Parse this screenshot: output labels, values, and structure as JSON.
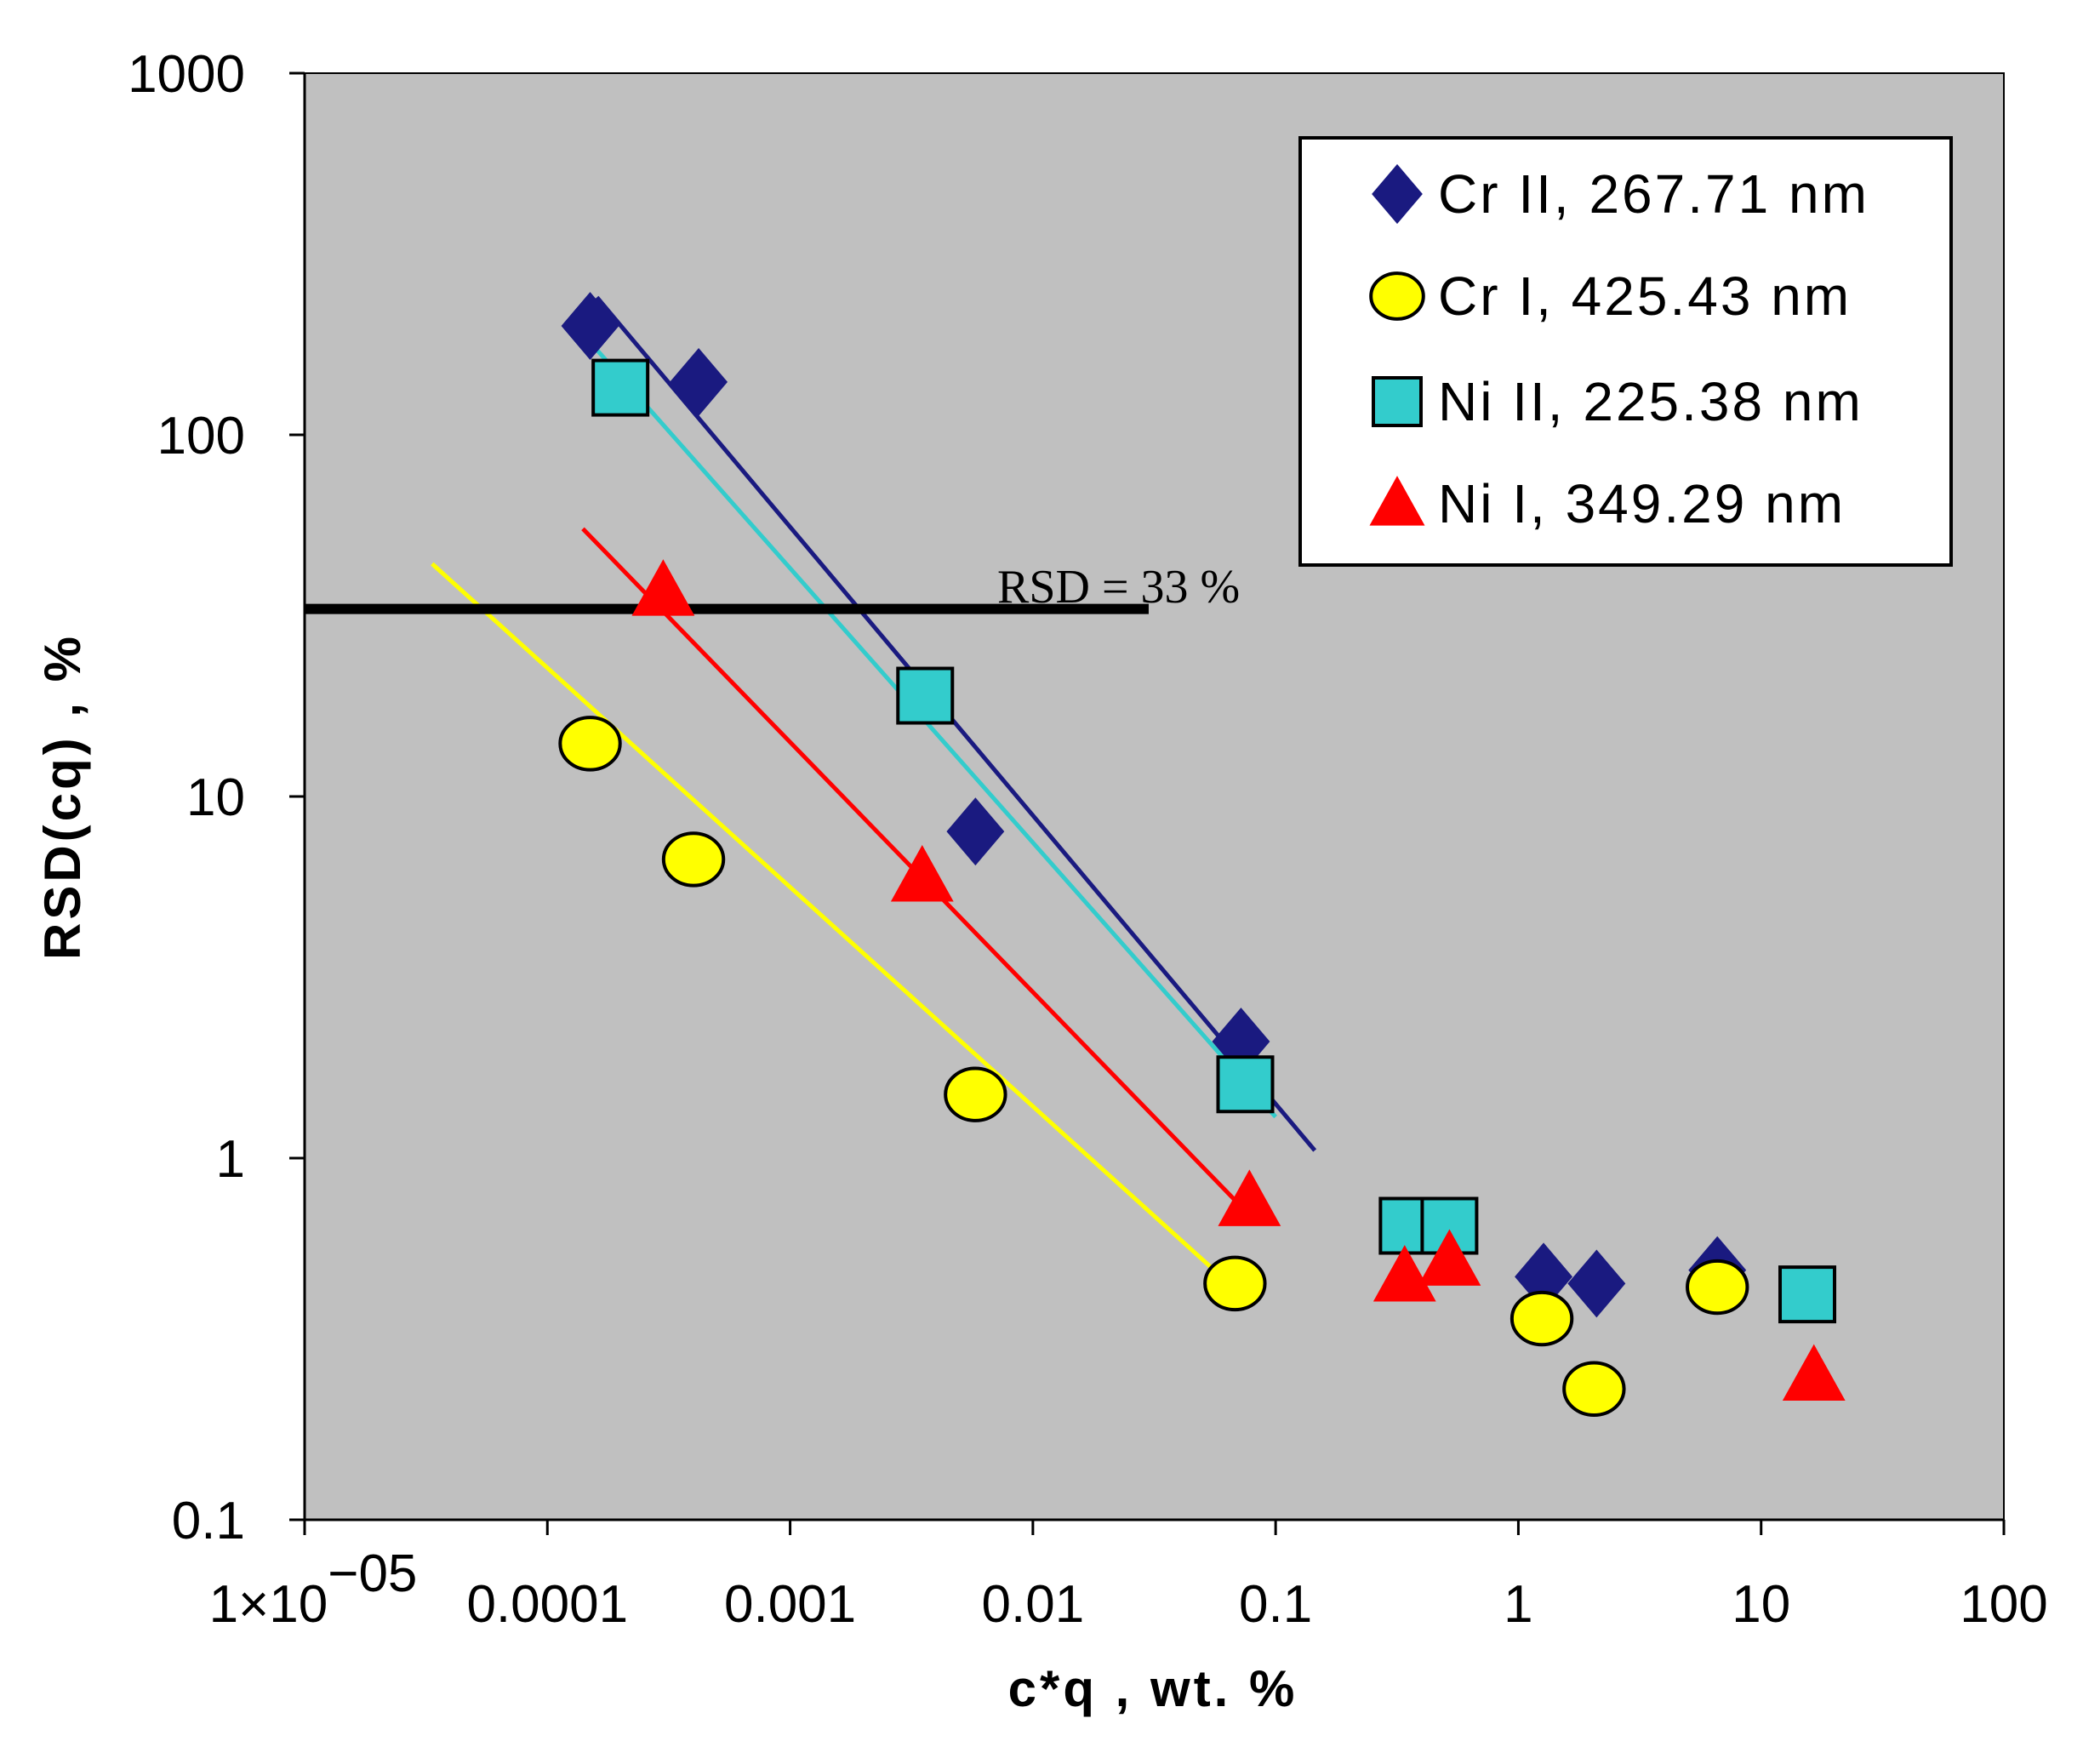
{
  "chart_data": {
    "type": "scatter",
    "xscale": "log",
    "yscale": "log",
    "xlabel": "c*q  , wt. %",
    "ylabel": "RSD(cq) , %",
    "xlim": [
      1e-05,
      100
    ],
    "ylim": [
      0.1,
      1000
    ],
    "x_tick_labels": [
      "1×10−05",
      "0.0001",
      "0.001",
      "0.01",
      "0.1",
      "1",
      "10",
      "100"
    ],
    "x_tick_values": [
      1e-05,
      0.0001,
      0.001,
      0.01,
      0.1,
      1,
      10,
      100
    ],
    "y_tick_labels": [
      "0.1",
      "1",
      "10",
      "100",
      "1000"
    ],
    "y_tick_values": [
      0.1,
      1,
      10,
      100,
      1000
    ],
    "grid": false,
    "legend_position": "top-right",
    "background": "#c0c0c0",
    "series": [
      {
        "name": "Cr II, 267.71 nm",
        "marker": "diamond",
        "color": "#1a1a80",
        "points": [
          [
            0.00015,
            200
          ],
          [
            0.00042,
            140
          ],
          [
            0.0058,
            8
          ],
          [
            0.072,
            2.1
          ],
          [
            1.27,
            0.47
          ],
          [
            2.1,
            0.45
          ],
          [
            6.6,
            0.49
          ]
        ],
        "fit_line": [
          [
            0.00016,
            240
          ],
          [
            0.145,
            1.05
          ]
        ]
      },
      {
        "name": "Cr I, 425.43 nm",
        "marker": "circle",
        "color": "#ffff00",
        "points": [
          [
            0.00015,
            14
          ],
          [
            0.0004,
            6.7
          ],
          [
            0.0058,
            1.5
          ],
          [
            0.068,
            0.45
          ],
          [
            1.25,
            0.36
          ],
          [
            2.05,
            0.23
          ],
          [
            6.6,
            0.44
          ]
        ],
        "fit_line": [
          [
            3.35e-05,
            44
          ],
          [
            0.062,
            0.46
          ]
        ]
      },
      {
        "name": "Ni II, 225.38 nm",
        "marker": "square",
        "color": "#33cccc",
        "points": [
          [
            0.0002,
            135
          ],
          [
            0.0036,
            19
          ],
          [
            0.075,
            1.6
          ],
          [
            0.35,
            0.65
          ],
          [
            0.52,
            0.65
          ],
          [
            15.5,
            0.42
          ]
        ],
        "fit_line": [
          [
            0.00014,
            190
          ],
          [
            0.1,
            1.3
          ]
        ]
      },
      {
        "name": "Ni I, 349.29 nm",
        "marker": "triangle",
        "color": "#ff0000",
        "points": [
          [
            0.0003,
            37
          ],
          [
            0.0035,
            6
          ],
          [
            0.078,
            0.76
          ],
          [
            0.34,
            0.47
          ],
          [
            0.52,
            0.52
          ],
          [
            16.5,
            0.25
          ]
        ],
        "fit_line": [
          [
            0.00014,
            55
          ],
          [
            0.07,
            0.75
          ]
        ]
      }
    ],
    "reference_line": {
      "label": "RSD = 33 %",
      "y": 33,
      "x_range": [
        1e-05,
        0.03
      ],
      "color": "#000000"
    }
  }
}
